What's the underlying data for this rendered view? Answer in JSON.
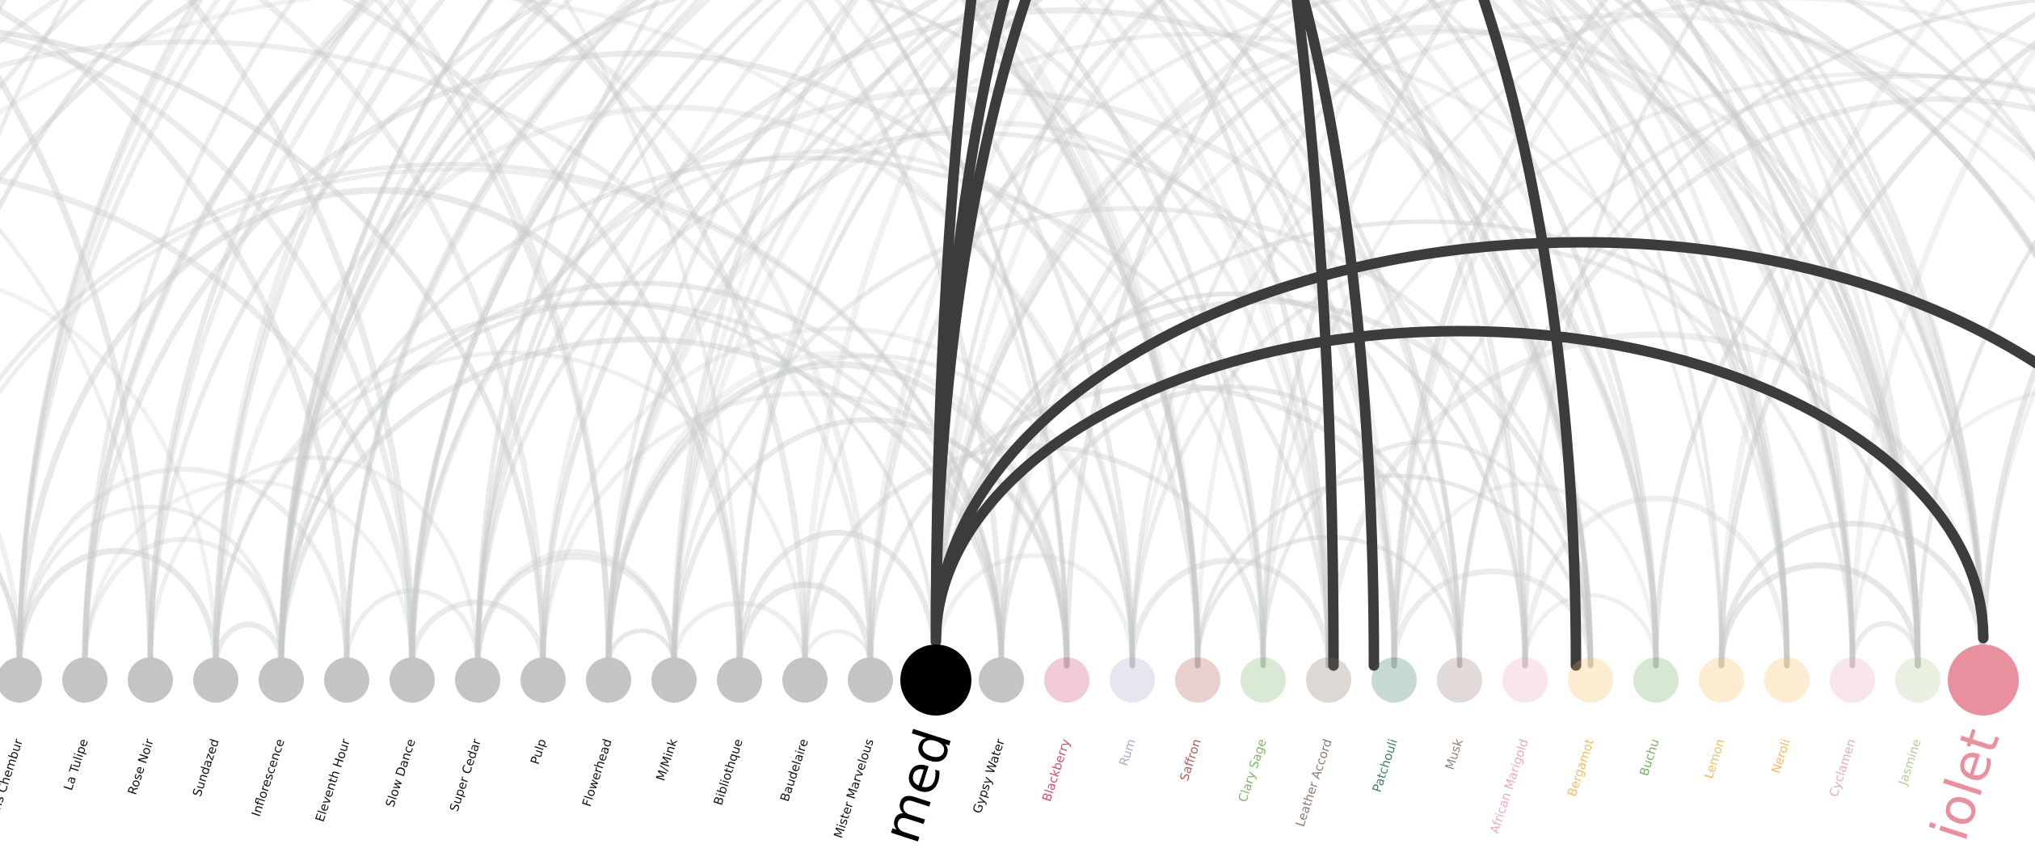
{
  "nodes": [
    {
      "label": "Encens Chembur",
      "group": "perfume",
      "color": "#c4c4c4",
      "selected": false,
      "connected": false
    },
    {
      "label": "La Tulipe",
      "group": "perfume",
      "color": "#c4c4c4",
      "selected": false,
      "connected": false
    },
    {
      "label": "Rose Noir",
      "group": "perfume",
      "color": "#c4c4c4",
      "selected": false,
      "connected": false
    },
    {
      "label": "Sundazed",
      "group": "perfume",
      "color": "#c4c4c4",
      "selected": false,
      "connected": false
    },
    {
      "label": "Inflorescence",
      "group": "perfume",
      "color": "#c4c4c4",
      "selected": false,
      "connected": false
    },
    {
      "label": "Eleventh Hour",
      "group": "perfume",
      "color": "#c4c4c4",
      "selected": false,
      "connected": false
    },
    {
      "label": "Slow Dance",
      "group": "perfume",
      "color": "#c4c4c4",
      "selected": false,
      "connected": false
    },
    {
      "label": "Super Cedar",
      "group": "perfume",
      "color": "#c4c4c4",
      "selected": false,
      "connected": false
    },
    {
      "label": "Pulp",
      "group": "perfume",
      "color": "#c4c4c4",
      "selected": false,
      "connected": false
    },
    {
      "label": "Flowerhead",
      "group": "perfume",
      "color": "#c4c4c4",
      "selected": false,
      "connected": false
    },
    {
      "label": "M/Mink",
      "group": "perfume",
      "color": "#c4c4c4",
      "selected": false,
      "connected": false
    },
    {
      "label": "Bibliothque",
      "group": "perfume",
      "color": "#c4c4c4",
      "selected": false,
      "connected": false
    },
    {
      "label": "Baudelaire",
      "group": "perfume",
      "color": "#c4c4c4",
      "selected": false,
      "connected": false
    },
    {
      "label": "Mister Marvelous",
      "group": "perfume",
      "color": "#c4c4c4",
      "selected": false,
      "connected": false
    },
    {
      "label": "med",
      "group": "perfume",
      "color": "#000000",
      "selected": true,
      "connected": false
    },
    {
      "label": "Gypsy Water",
      "group": "perfume",
      "color": "#c4c4c4",
      "selected": false,
      "connected": false
    },
    {
      "label": "Blackberry",
      "group": "note",
      "color": "#c2305a",
      "selected": false,
      "connected": false
    },
    {
      "label": "Rum",
      "group": "note",
      "color": "#9c9cc4",
      "selected": false,
      "connected": false
    },
    {
      "label": "Saffron",
      "group": "note",
      "color": "#a8423c",
      "selected": false,
      "connected": false
    },
    {
      "label": "Clary Sage",
      "group": "note",
      "color": "#6aa84f",
      "selected": false,
      "connected": false
    },
    {
      "label": "Leather Accord",
      "group": "note",
      "color": "#7a6455",
      "selected": false,
      "connected": false
    },
    {
      "label": "Patchouli",
      "group": "note",
      "color": "#1f6b4a",
      "selected": false,
      "connected": false
    },
    {
      "label": "Musk",
      "group": "note",
      "color": "#8a6a62",
      "selected": false,
      "connected": false
    },
    {
      "label": "African Marigold",
      "group": "note",
      "color": "#e89ab0",
      "selected": false,
      "connected": false
    },
    {
      "label": "Bergamot",
      "group": "note",
      "color": "#f2b24a",
      "selected": false,
      "connected": false
    },
    {
      "label": "Buchu",
      "group": "note",
      "color": "#5fa34a",
      "selected": false,
      "connected": false
    },
    {
      "label": "Lemon",
      "group": "note",
      "color": "#f2b24a",
      "selected": false,
      "connected": false
    },
    {
      "label": "Neroli",
      "group": "note",
      "color": "#f2b24a",
      "selected": false,
      "connected": false
    },
    {
      "label": "Cyclamen",
      "group": "note",
      "color": "#e89ab0",
      "selected": false,
      "connected": false
    },
    {
      "label": "Jasmine",
      "group": "note",
      "color": "#a9c48a",
      "selected": false,
      "connected": false
    },
    {
      "label": "iolet",
      "group": "note",
      "color": "#e8909e",
      "selected": false,
      "connected": true
    }
  ],
  "colors": {
    "background": "#ffffff",
    "perfume_node": "#c4c4c4",
    "selected_node": "#000000",
    "faint_link": "#c6cac8",
    "highlight_link": "#3c3c3c",
    "perfume_label": "#111111"
  }
}
